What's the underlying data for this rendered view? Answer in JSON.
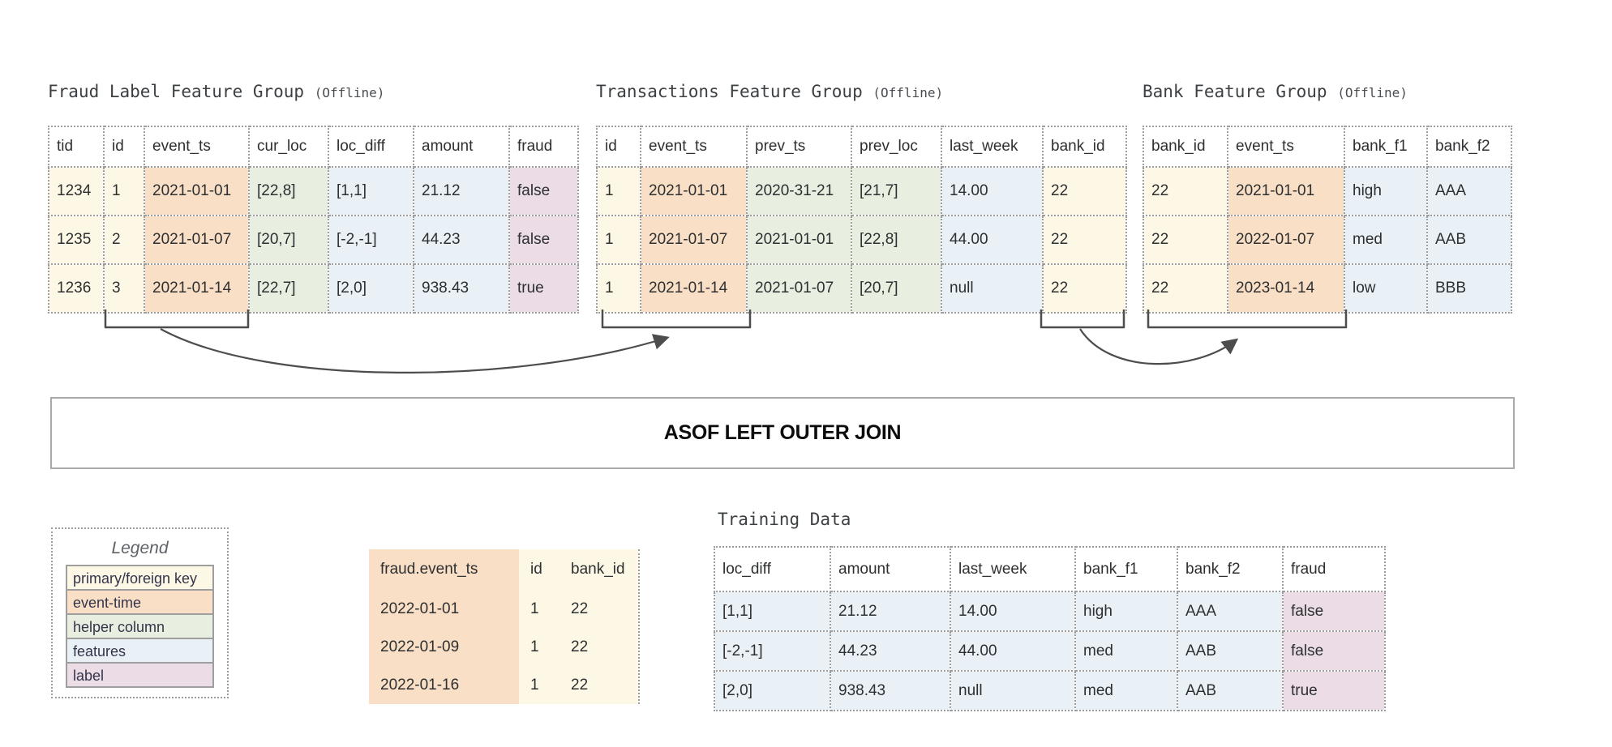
{
  "colors": {
    "key": "#fdf8e6",
    "event_time": "#f8dfc6",
    "helper": "#e8efe1",
    "features": "#e9f1f7",
    "label": "#ebdce6"
  },
  "feature_groups": [
    {
      "title": "Fraud Label Feature Group",
      "suffix": "(Offline)",
      "columns": [
        "tid",
        "id",
        "event_ts",
        "cur_loc",
        "loc_diff",
        "amount",
        "fraud"
      ],
      "types": [
        "key",
        "key",
        "event_time",
        "helper",
        "features",
        "features",
        "label"
      ],
      "rows": [
        [
          "1234",
          "1",
          "2021-01-01",
          "[22,8]",
          "[1,1]",
          "21.12",
          "false"
        ],
        [
          "1235",
          "2",
          "2021-01-07",
          "[20,7]",
          "[-2,-1]",
          "44.23",
          "false"
        ],
        [
          "1236",
          "3",
          "2021-01-14",
          "[22,7]",
          "[2,0]",
          "938.43",
          "true"
        ]
      ]
    },
    {
      "title": "Transactions Feature Group",
      "suffix": "(Offline)",
      "columns": [
        "id",
        "event_ts",
        "prev_ts",
        "prev_loc",
        "last_week",
        "bank_id"
      ],
      "types": [
        "key",
        "event_time",
        "helper",
        "helper",
        "features",
        "key"
      ],
      "rows": [
        [
          "1",
          "2021-01-01",
          "2020-31-21",
          "[21,7]",
          "14.00",
          "22"
        ],
        [
          "1",
          "2021-01-07",
          "2021-01-01",
          "[22,8]",
          "44.00",
          "22"
        ],
        [
          "1",
          "2021-01-14",
          "2021-01-07",
          "[20,7]",
          "null",
          "22"
        ]
      ]
    },
    {
      "title": "Bank Feature Group",
      "suffix": "(Offline)",
      "columns": [
        "bank_id",
        "event_ts",
        "bank_f1",
        "bank_f2"
      ],
      "types": [
        "key",
        "event_time",
        "features",
        "features"
      ],
      "rows": [
        [
          "22",
          "2021-01-01",
          "high",
          "AAA"
        ],
        [
          "22",
          "2022-01-07",
          "med",
          "AAB"
        ],
        [
          "22",
          "2023-01-14",
          "low",
          "BBB"
        ]
      ]
    }
  ],
  "join_box": {
    "label": "ASOF LEFT OUTER JOIN"
  },
  "legend": {
    "title": "Legend",
    "items": [
      {
        "label": "primary/foreign key",
        "type": "key"
      },
      {
        "label": "event-time",
        "type": "event_time"
      },
      {
        "label": "helper column",
        "type": "helper"
      },
      {
        "label": "features",
        "type": "features"
      },
      {
        "label": "label",
        "type": "label"
      }
    ]
  },
  "spine_table": {
    "columns": [
      "fraud.event_ts",
      "id",
      "bank_id"
    ],
    "types": [
      "event_time",
      "key",
      "key"
    ],
    "rows": [
      [
        "2022-01-01",
        "1",
        "22"
      ],
      [
        "2022-01-09",
        "1",
        "22"
      ],
      [
        "2022-01-16",
        "1",
        "22"
      ]
    ]
  },
  "training": {
    "title": "Training Data",
    "columns": [
      "loc_diff",
      "amount",
      "last_week",
      "bank_f1",
      "bank_f2",
      "fraud"
    ],
    "types": [
      "features",
      "features",
      "features",
      "features",
      "features",
      "label"
    ],
    "rows": [
      [
        "[1,1]",
        "21.12",
        "14.00",
        "high",
        "AAA",
        "false"
      ],
      [
        "[-2,-1]",
        "44.23",
        "44.00",
        "med",
        "AAB",
        "false"
      ],
      [
        "[2,0]",
        "938.43",
        "null",
        "med",
        "AAB",
        "true"
      ]
    ]
  }
}
